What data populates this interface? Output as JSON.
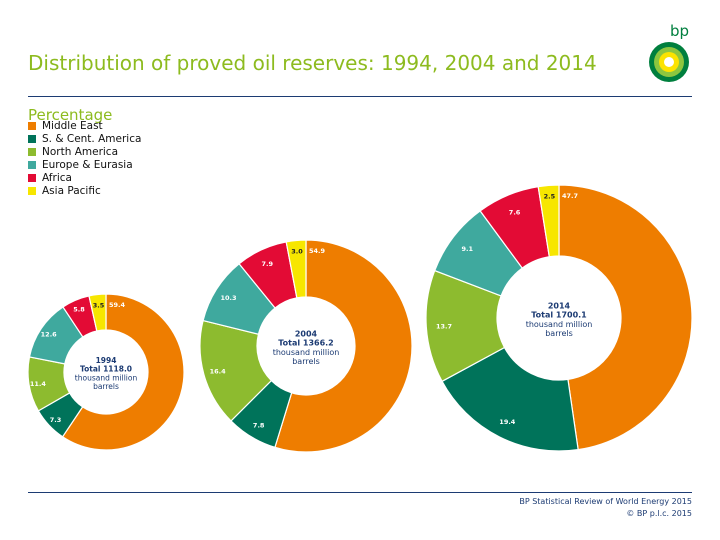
{
  "header": {
    "title": "Distribution of proved oil reserves: 1994, 2004 and 2014",
    "subtitle": "Percentage",
    "logo_text": "bp"
  },
  "legend": {
    "items": [
      {
        "label": "Middle East",
        "color": "#ee7d00"
      },
      {
        "label": "S. & Cent. America",
        "color": "#00735a"
      },
      {
        "label": "North America",
        "color": "#8dbb2f"
      },
      {
        "label": "Europe & Eurasia",
        "color": "#3fa99e"
      },
      {
        "label": "Africa",
        "color": "#e30b35"
      },
      {
        "label": "Asia Pacific",
        "color": "#f7e600"
      }
    ]
  },
  "footer": {
    "line1": "BP Statistical Review of World Energy 2015",
    "line2": "© BP p.l.c. 2015"
  },
  "chart_data": {
    "type": "pie",
    "series_order": [
      "Middle East",
      "S. & Cent. America",
      "North America",
      "Europe & Eurasia",
      "Africa",
      "Asia Pacific"
    ],
    "charts": [
      {
        "year": "1994",
        "total_label": "Total 1118.0",
        "unit_label": "thousand million barrels",
        "values": [
          59.4,
          7.3,
          11.4,
          12.6,
          5.8,
          3.5
        ]
      },
      {
        "year": "2004",
        "total_label": "Total 1366.2",
        "unit_label": "thousand million barrels",
        "values": [
          54.9,
          7.8,
          16.4,
          10.3,
          7.9,
          3.0
        ]
      },
      {
        "year": "2014",
        "total_label": "Total 1700.1",
        "unit_label": "thousand million barrels",
        "values": [
          47.7,
          19.4,
          13.7,
          9.1,
          7.6,
          2.5
        ]
      }
    ]
  }
}
